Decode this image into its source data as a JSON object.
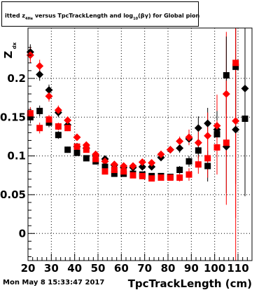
{
  "title": {
    "prefix": "itted ",
    "z_main": "z",
    "z_sub": "4He",
    "middle": " versus TpcTrackLength and log",
    "log_sub": "10",
    "suffix": "(βγ) for Global pion+"
  },
  "footer_date": "Mon May  8 15:33:47 2017",
  "y_axis_label": {
    "main": "Z",
    "sub": "dx"
  },
  "x_axis_label": "TpcTrackLength (cm)",
  "x_tick_labels": [
    "20",
    "30",
    "40",
    "50",
    "60",
    "70",
    "80",
    "90",
    "100",
    "110"
  ],
  "y_tick_labels": [
    "0",
    "0.05",
    "0.1",
    "0.15",
    "0.2"
  ],
  "colors": {
    "black_series": "#000000",
    "red_series": "#ff0000",
    "frame": "#000000",
    "grid": "#000000"
  },
  "chart_data": {
    "type": "scatter",
    "xlim": [
      20,
      116
    ],
    "ylim": [
      -0.035,
      0.265
    ],
    "grid": true,
    "series": [
      {
        "marker": "diamond",
        "color": "#000000",
        "x": [
          21,
          25,
          29,
          33,
          37,
          41,
          45,
          49,
          53,
          57,
          61,
          65,
          69,
          73,
          77,
          81,
          85,
          89,
          93,
          97,
          101,
          105,
          109,
          113
        ],
        "y": [
          0.234,
          0.205,
          0.185,
          0.156,
          0.14,
          0.112,
          0.11,
          0.1,
          0.096,
          0.088,
          0.085,
          0.085,
          0.086,
          0.086,
          0.098,
          0.108,
          0.11,
          0.122,
          0.136,
          0.142,
          0.134,
          0.112,
          0.134,
          0.187
        ],
        "yerr": [
          0.01,
          0.008,
          0.007,
          0.006,
          0.005,
          0.004,
          0.004,
          0.003,
          0.003,
          0.003,
          0.003,
          0.003,
          0.003,
          0.003,
          0.004,
          0.004,
          0.006,
          0.008,
          0.015,
          0.02,
          0.025,
          0.06,
          0.07,
          0.1
        ]
      },
      {
        "marker": "diamond",
        "color": "#ff0000",
        "x": [
          21,
          25,
          29,
          33,
          37,
          41,
          45,
          49,
          53,
          57,
          61,
          65,
          69,
          73,
          77,
          81,
          85,
          89,
          93,
          97,
          101,
          105,
          109
        ],
        "y": [
          0.23,
          0.216,
          0.177,
          0.159,
          0.146,
          0.124,
          0.114,
          0.102,
          0.093,
          0.089,
          0.087,
          0.087,
          0.092,
          0.091,
          0.102,
          0.108,
          0.119,
          0.124,
          0.117,
          0.126,
          0.139,
          0.18,
          0.145
        ],
        "yerr": [
          0.01,
          0.008,
          0.007,
          0.006,
          0.005,
          0.004,
          0.004,
          0.003,
          0.003,
          0.003,
          0.003,
          0.003,
          0.003,
          0.003,
          0.004,
          0.004,
          0.006,
          0.01,
          0.015,
          0.03,
          0.04,
          0.08,
          0.18
        ]
      },
      {
        "marker": "square",
        "color": "#000000",
        "x": [
          21,
          25,
          29,
          33,
          37,
          41,
          45,
          49,
          53,
          57,
          61,
          65,
          69,
          73,
          77,
          81,
          85,
          89,
          93,
          97,
          101,
          105,
          109,
          113
        ],
        "y": [
          0.15,
          0.158,
          0.143,
          0.127,
          0.108,
          0.104,
          0.097,
          0.093,
          0.086,
          0.077,
          0.077,
          0.077,
          0.076,
          0.074,
          0.074,
          0.073,
          0.082,
          0.093,
          0.107,
          0.087,
          0.128,
          0.204,
          0.215,
          0.148
        ],
        "yerr": [
          0.008,
          0.007,
          0.006,
          0.005,
          0.004,
          0.003,
          0.003,
          0.003,
          0.003,
          0.003,
          0.003,
          0.003,
          0.003,
          0.003,
          0.003,
          0.003,
          0.005,
          0.007,
          0.01,
          0.02,
          0.03,
          0.05,
          0.08,
          0.1
        ]
      },
      {
        "marker": "square",
        "color": "#ff0000",
        "x": [
          21,
          25,
          29,
          33,
          37,
          41,
          45,
          49,
          53,
          57,
          61,
          65,
          69,
          73,
          77,
          81,
          85,
          89,
          93,
          97,
          101,
          105,
          109
        ],
        "y": [
          0.155,
          0.136,
          0.147,
          0.138,
          0.136,
          0.112,
          0.108,
          0.096,
          0.08,
          0.082,
          0.08,
          0.075,
          0.074,
          0.071,
          0.072,
          0.072,
          0.072,
          0.076,
          0.089,
          0.097,
          0.111,
          0.117,
          0.22
        ],
        "yerr": [
          0.008,
          0.007,
          0.006,
          0.005,
          0.004,
          0.003,
          0.003,
          0.003,
          0.003,
          0.003,
          0.003,
          0.003,
          0.003,
          0.003,
          0.003,
          0.003,
          0.005,
          0.008,
          0.012,
          0.025,
          0.035,
          0.08,
          0.2
        ]
      }
    ]
  }
}
